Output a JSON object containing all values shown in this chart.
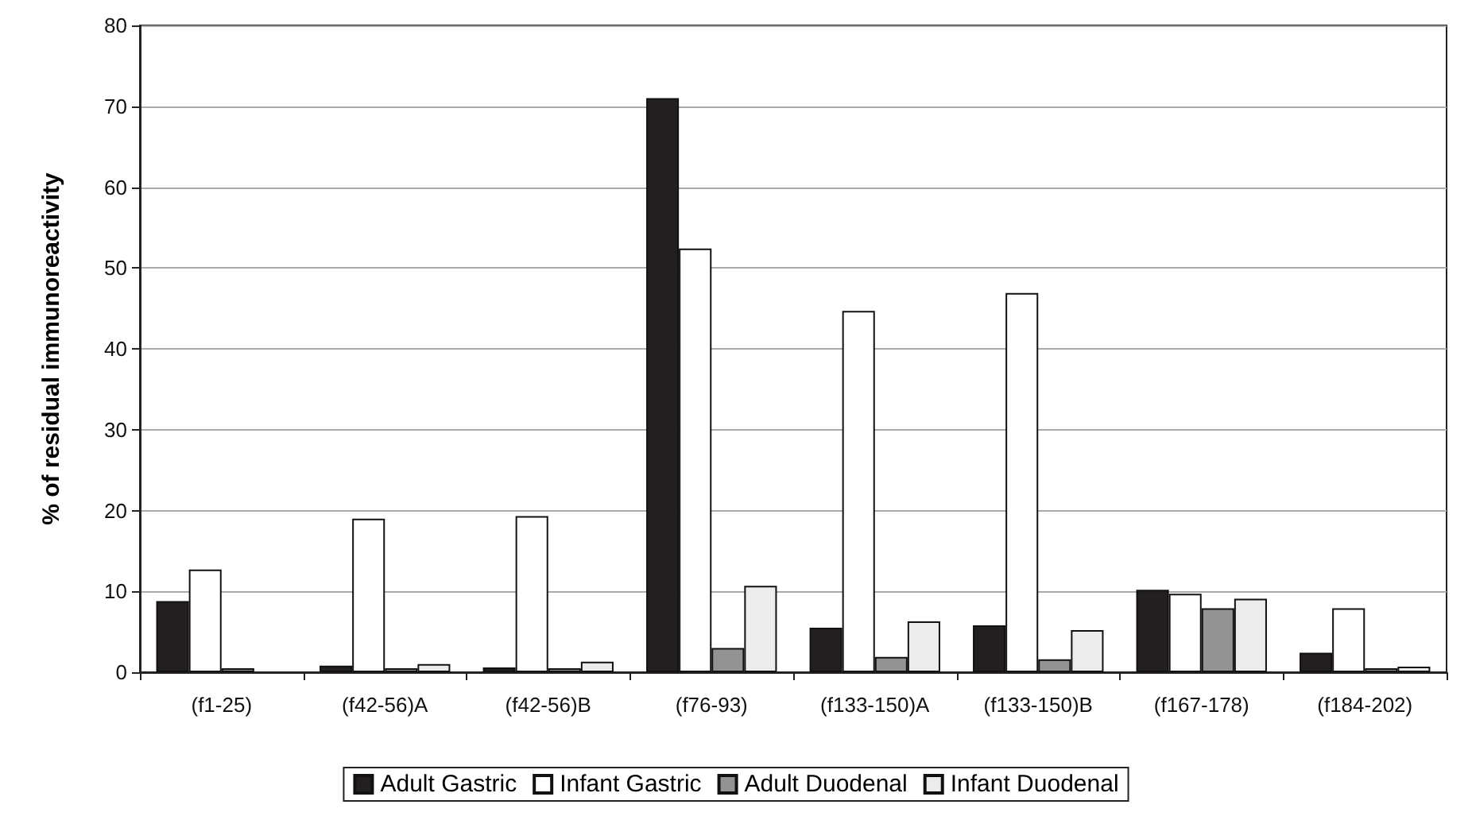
{
  "chart_data": {
    "type": "bar",
    "ylabel": "% of residual immunoreactivity",
    "categories": [
      "(f1-25)",
      "(f42-56)A",
      "(f42-56)B",
      "(f76-93)",
      "(f133-150)A",
      "(f133-150)B",
      "(f167-178)",
      "(f184-202)"
    ],
    "series": [
      {
        "name": "Adult Gastric",
        "color": "#231f20",
        "values": [
          8.8,
          0.8,
          0.6,
          71,
          5.5,
          5.8,
          10.2,
          2.4
        ]
      },
      {
        "name": "Infant Gastric",
        "color": "#ffffff",
        "values": [
          12.7,
          19,
          19.3,
          52.4,
          44.7,
          46.9,
          9.7,
          7.9
        ]
      },
      {
        "name": "Adult Duodenal",
        "color": "#939393",
        "values": [
          0.5,
          0.5,
          0.5,
          3,
          1.9,
          1.6,
          7.9,
          0.5
        ]
      },
      {
        "name": "Infant Duodenal",
        "color": "#ececec",
        "values": [
          null,
          1,
          1.3,
          10.7,
          6.3,
          5.2,
          9.1,
          0.7
        ]
      }
    ],
    "ylim": [
      0,
      80
    ],
    "yticks": [
      0,
      10,
      20,
      30,
      40,
      50,
      60,
      70,
      80
    ],
    "grid": "y",
    "legend": "bottom"
  }
}
